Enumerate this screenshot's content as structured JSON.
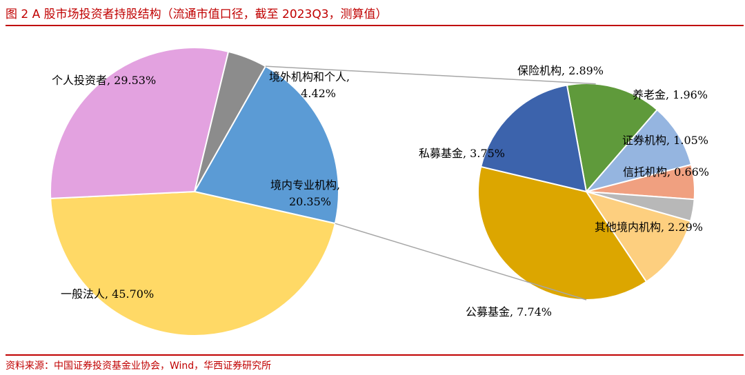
{
  "title": "图 2  A 股市场投资者持股结构（流通市值口径，截至 2023Q3，测算值）",
  "source": "资料来源：中国证券投资基金业协会，Wind，华西证券研究所",
  "chart_data": [
    {
      "type": "pie",
      "slices": [
        {
          "name": "境内专业机构",
          "value": 20.35,
          "label": "境内专业机构,",
          "label2": "20.35%",
          "color": "#5b9bd5"
        },
        {
          "name": "一般法人",
          "value": 45.7,
          "label": "一般法人, 45.70%",
          "color": "#ffd966"
        },
        {
          "name": "个人投资者",
          "value": 29.53,
          "label": "个人投资者, 29.53%",
          "color": "#e3a2e0"
        },
        {
          "name": "境外机构和个人",
          "value": 4.42,
          "label": "境外机构和个人,",
          "label2": "4.42%",
          "color": "#8c8c8c"
        }
      ]
    },
    {
      "type": "pie",
      "slices": [
        {
          "name": "保险机构",
          "value": 2.89,
          "label": "保险机构, 2.89%",
          "color": "#5f9a3b"
        },
        {
          "name": "养老金",
          "value": 1.96,
          "label": "养老金, 1.96%",
          "color": "#95b5e0"
        },
        {
          "name": "证券机构",
          "value": 1.05,
          "label": "证券机构, 1.05%",
          "color": "#f0a080"
        },
        {
          "name": "信托机构",
          "value": 0.66,
          "label": "信托机构, 0.66%",
          "color": "#b8b8b8"
        },
        {
          "name": "其他境内机构",
          "value": 2.29,
          "label": "其他境内机构, 2.29%",
          "color": "#fdcf7f"
        },
        {
          "name": "公募基金",
          "value": 7.74,
          "label": "公募基金, 7.74%",
          "color": "#dca600"
        },
        {
          "name": "私募基金",
          "value": 3.75,
          "label": "私募基金, 3.75%",
          "color": "#3c63ac"
        }
      ]
    }
  ]
}
